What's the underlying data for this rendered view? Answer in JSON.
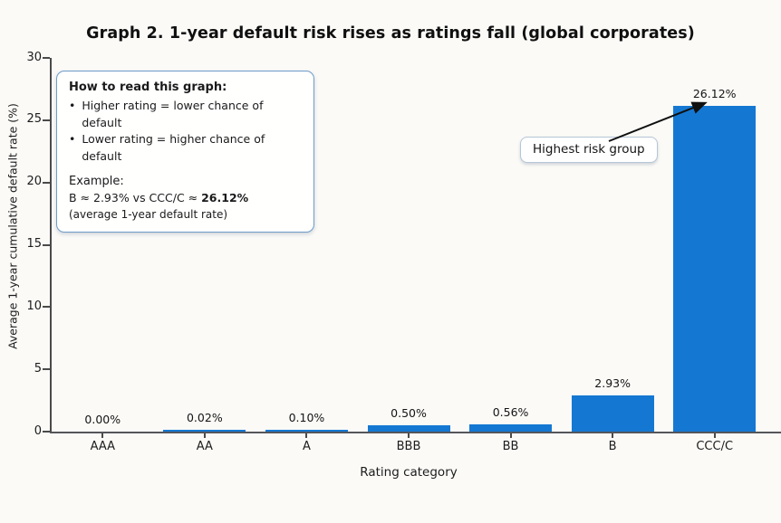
{
  "figure": {
    "title": "Graph 2. 1-year default risk rises as ratings fall (global corporates)"
  },
  "chart_data": {
    "type": "bar",
    "title": "Graph 2. 1-year default risk rises as ratings fall (global corporates)",
    "categories": [
      "AAA",
      "AA",
      "A",
      "BBB",
      "BB",
      "B",
      "CCC/C"
    ],
    "values": [
      0.0,
      0.02,
      0.1,
      0.5,
      0.56,
      2.93,
      26.12
    ],
    "bar_labels": [
      "0.00%",
      "0.02%",
      "0.10%",
      "0.50%",
      "0.56%",
      "2.93%",
      "26.12%"
    ],
    "xlabel": "Rating category",
    "ylabel": "Average 1-year cumulative default rate (%)",
    "ylim": [
      0,
      30
    ],
    "y_ticks": [
      0,
      5,
      10,
      15,
      20,
      25,
      30
    ],
    "grid": false,
    "legend": "none",
    "bar_color": "#1478d2",
    "annotation": {
      "text": "Highest risk group",
      "points_to": "CCC/C"
    }
  },
  "info_box": {
    "heading": "How to read this graph:",
    "bullet_glyph": "•",
    "bullets": [
      "Higher rating = lower chance of default",
      "Lower rating = higher chance of default"
    ],
    "example_heading": "Example:",
    "example_prefix": "B ≈ 2.93% vs CCC/C ≈ ",
    "example_value": "26.12%",
    "example_note": "(average 1-year default rate)"
  },
  "callout": {
    "label": "Highest risk group"
  }
}
